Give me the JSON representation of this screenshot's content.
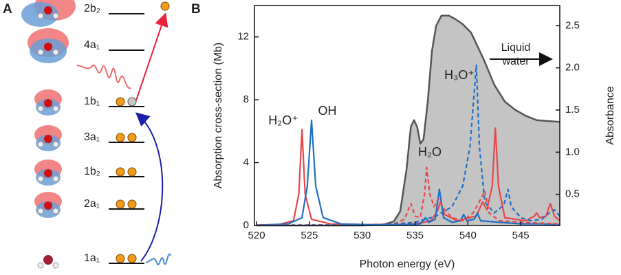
{
  "panel_a": {
    "label": "A",
    "levels": [
      "2b₂",
      "4a₁",
      "1b₁",
      "3a₁",
      "1b₂",
      "2a₁",
      "1a₁"
    ]
  },
  "chart_data": {
    "type": "line",
    "label": "B",
    "xlabel": "Photon energy (eV)",
    "ylabel": "Absorption cross-section (Mb)",
    "y2label": "Absorbance",
    "xlim": [
      519.8,
      548.7
    ],
    "ylim": [
      0,
      14
    ],
    "y2lim": [
      0.13,
      2.74
    ],
    "xticks": [
      520,
      525,
      530,
      535,
      540,
      545
    ],
    "yticks": [
      0,
      4,
      8,
      12
    ],
    "y2ticks": [
      0.5,
      {
        "value": 1.0,
        "label": "1.0"
      },
      1.5,
      {
        "value": 2.0,
        "label": "2.0"
      },
      2.5
    ],
    "series": [
      {
        "name": "Liquid water",
        "axis": "y2",
        "color": "#555555",
        "fill": "#c4c4c4",
        "x": [
          520,
          530,
          532,
          533,
          533.6,
          534.2,
          534.6,
          534.9,
          535.2,
          535.5,
          535.8,
          536.2,
          536.6,
          537.0,
          537.5,
          538.2,
          538.8,
          539.5,
          540.3,
          541.5,
          542.5,
          543.5,
          544.5,
          545.5,
          546.5,
          547.5,
          548.7
        ],
        "values": [
          0.13,
          0.13,
          0.14,
          0.18,
          0.3,
          0.8,
          1.3,
          1.38,
          1.3,
          1.1,
          1.15,
          1.6,
          2.2,
          2.5,
          2.62,
          2.62,
          2.58,
          2.52,
          2.42,
          2.1,
          1.8,
          1.6,
          1.5,
          1.43,
          1.38,
          1.37,
          1.36
        ]
      },
      {
        "name": "H₂O⁺",
        "color": "#e8474a",
        "dash": false,
        "x": [
          520,
          522,
          523.5,
          524,
          524.3,
          524.6,
          525.2,
          527,
          530,
          533,
          535,
          536.5,
          537.1,
          537.4,
          537.8,
          539,
          540.8,
          541.4,
          541.8,
          542.3,
          542.6,
          542.9,
          543.5,
          545.5,
          546.3,
          546.5,
          546.8,
          547.4,
          547.8,
          548.2,
          548.7
        ],
        "values": [
          0.02,
          0.05,
          0.3,
          2.0,
          6.1,
          2.0,
          0.4,
          0.1,
          0.05,
          0.05,
          0.1,
          0.3,
          0.9,
          1.5,
          0.7,
          0.3,
          0.6,
          1.5,
          1.0,
          2.5,
          6.2,
          2.5,
          0.5,
          0.3,
          0.6,
          0.8,
          0.5,
          0.6,
          1.4,
          0.6,
          0.3
        ]
      },
      {
        "name": "OH",
        "color": "#1f6fc5",
        "dash": false,
        "x": [
          520,
          523,
          524.3,
          524.8,
          525.2,
          525.6,
          526.3,
          528,
          531,
          534,
          535.5,
          536.0,
          536.3,
          536.9,
          537.3,
          537.7,
          538.5,
          539.3,
          539.6,
          539.9,
          540.6,
          540.9,
          541.2,
          543,
          545,
          547,
          548.7
        ],
        "values": [
          0.02,
          0.1,
          0.5,
          2.5,
          6.7,
          2.5,
          0.5,
          0.1,
          0.05,
          0.05,
          0.1,
          0.5,
          0.2,
          0.4,
          2.3,
          0.5,
          0.2,
          0.3,
          0.7,
          0.3,
          0.4,
          0.8,
          0.3,
          0.2,
          0.1,
          0.1,
          0.05
        ]
      },
      {
        "name": "H₂O",
        "color": "#e8474a",
        "dash": true,
        "x": [
          520,
          530,
          533,
          534.0,
          534.6,
          535.0,
          535.5,
          535.9,
          536.1,
          536.4,
          536.8,
          537.2,
          537.8,
          538.5,
          539.5,
          540.5,
          541.0,
          541.6,
          542.0,
          543,
          545,
          548.7
        ],
        "values": [
          0.02,
          0.05,
          0.1,
          0.4,
          1.4,
          0.6,
          0.5,
          2.0,
          3.7,
          2.0,
          1.2,
          1.7,
          1.0,
          0.5,
          0.3,
          0.8,
          1.4,
          2.2,
          0.8,
          0.3,
          0.2,
          0.1
        ]
      },
      {
        "name": "H₃O⁺",
        "color": "#1f6fc5",
        "dash": true,
        "x": [
          520,
          532,
          535,
          537,
          538.5,
          539.5,
          540.2,
          540.8,
          541.1,
          541.6,
          542.5,
          543.4,
          543.8,
          544.1,
          545,
          546,
          547,
          547.7,
          548.2,
          548.7
        ],
        "values": [
          0,
          0.05,
          0.2,
          0.6,
          1.2,
          2.5,
          5,
          10.2,
          5,
          1.5,
          0.8,
          1.3,
          2.3,
          1.2,
          0.5,
          0.3,
          0.4,
          0.8,
          1.0,
          0.6
        ]
      }
    ]
  }
}
